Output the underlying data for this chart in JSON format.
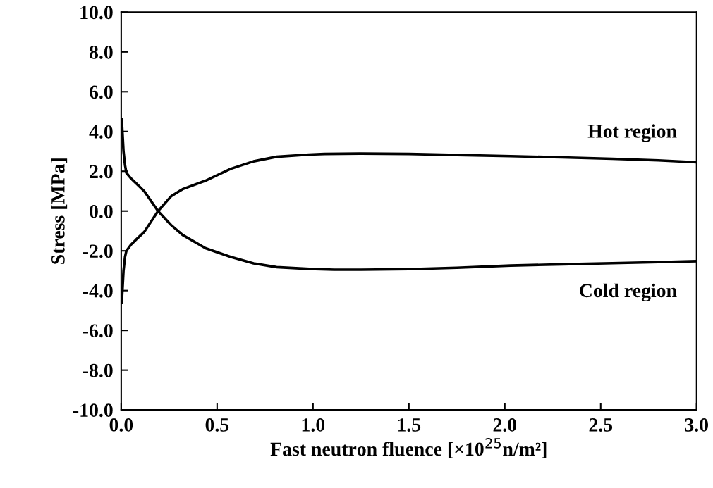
{
  "chart_data": {
    "type": "line",
    "xlabel": "Fast neutron fluence [×10$^{25}$n/m²]",
    "ylabel": "Stress [MPa]",
    "series": [
      {
        "name": "Hot region",
        "color": "#000000",
        "x": [
          0.003,
          0.012,
          0.02,
          0.027,
          0.05,
          0.076,
          0.12,
          0.192,
          0.26,
          0.32,
          0.44,
          0.57,
          0.69,
          0.81,
          0.98,
          1.06,
          1.25,
          1.5,
          1.75,
          2.03,
          2.3,
          2.56,
          2.8,
          3.0
        ],
        "values": [
          -4.6,
          -3.0,
          -2.3,
          -2.0,
          -1.7,
          -1.45,
          -1.05,
          -0.0,
          0.74,
          1.1,
          1.53,
          2.12,
          2.5,
          2.73,
          2.84,
          2.87,
          2.89,
          2.87,
          2.82,
          2.76,
          2.7,
          2.63,
          2.55,
          2.45
        ]
      },
      {
        "name": "Cold region",
        "color": "#000000",
        "x": [
          0.003,
          0.012,
          0.02,
          0.027,
          0.05,
          0.076,
          0.12,
          0.192,
          0.26,
          0.32,
          0.44,
          0.57,
          0.69,
          0.81,
          0.98,
          1.11,
          1.25,
          1.5,
          1.75,
          2.03,
          2.3,
          2.56,
          2.8,
          3.0
        ],
        "values": [
          4.6,
          3.0,
          2.3,
          1.92,
          1.65,
          1.41,
          1.0,
          0.0,
          -0.7,
          -1.2,
          -1.87,
          -2.3,
          -2.63,
          -2.82,
          -2.91,
          -2.95,
          -2.95,
          -2.92,
          -2.85,
          -2.74,
          -2.68,
          -2.62,
          -2.57,
          -2.52
        ]
      }
    ],
    "xlim": [
      0,
      3.0
    ],
    "ylim": [
      -10.0,
      10.0
    ],
    "xticks": [
      {
        "value": 0,
        "label": "0.0"
      },
      0.5,
      {
        "value": 1,
        "label": "1.0"
      },
      1.5,
      {
        "value": 2,
        "label": "2.0"
      },
      2.5,
      {
        "value": 3,
        "label": "3.0"
      }
    ],
    "yticks": [
      {
        "value": -10,
        "label": "-10.0"
      },
      {
        "value": -8,
        "label": "-8.0"
      },
      {
        "value": -6,
        "label": "-6.0"
      },
      {
        "value": -4,
        "label": "-4.0"
      },
      {
        "value": -2,
        "label": "-2.0"
      },
      {
        "value": 0,
        "label": "0.0"
      },
      {
        "value": 2,
        "label": "2.0"
      },
      {
        "value": 4,
        "label": "4.0"
      },
      {
        "value": 6,
        "label": "6.0"
      },
      {
        "value": 8,
        "label": "8.0"
      },
      {
        "value": 10,
        "label": "10.0"
      }
    ],
    "grid": false,
    "legend": false,
    "marker": "none",
    "line_style": "solid"
  }
}
